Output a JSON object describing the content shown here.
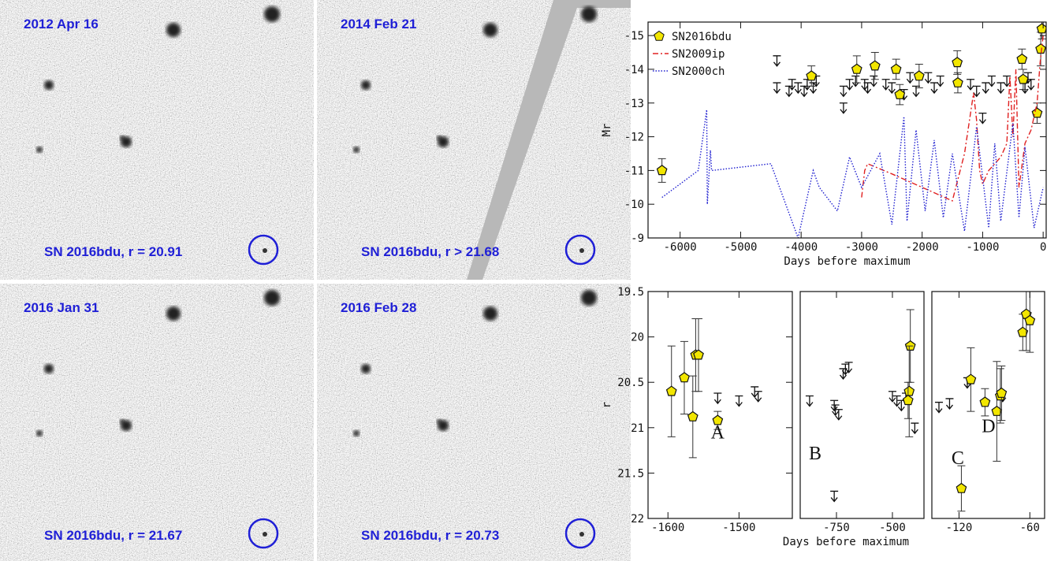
{
  "images": [
    {
      "date": "2012 Apr 16",
      "caption": "SN 2016bdu, r = 20.91"
    },
    {
      "date": "2014 Feb 21",
      "caption": "SN 2016bdu, r > 21.68"
    },
    {
      "date": "2016 Jan 31",
      "caption": "SN 2016bdu, r = 21.67"
    },
    {
      "date": "2016 Feb 28",
      "caption": "SN 2016bdu, r = 20.73"
    }
  ],
  "chart_data": [
    {
      "type": "scatter",
      "ylabel": "Mr",
      "xlabel": "Days before maximum",
      "legend": "upper left",
      "xlim": [
        -6530,
        50
      ],
      "ylim": [
        -9,
        -15.4
      ],
      "xticks": [
        -6000,
        -5000,
        -4000,
        -3000,
        -2000,
        -1000,
        0
      ],
      "yticks": [
        -15,
        -14,
        -13,
        -12,
        -11,
        -10,
        -9
      ],
      "series": [
        {
          "name": "SN2016bdu",
          "mark": "pentagon",
          "color": "#f2e600",
          "x": [
            -6300,
            -3830,
            -3080,
            -2780,
            -2430,
            -2370,
            -2050,
            -1420,
            -1410,
            -350,
            -330,
            -100,
            -40,
            -20
          ],
          "values": [
            -11.0,
            -13.8,
            -14.0,
            -14.1,
            -14.0,
            -13.25,
            -13.8,
            -14.2,
            -13.6,
            -14.3,
            -13.7,
            -12.7,
            -14.6,
            -15.2
          ],
          "errors": [
            0.35,
            0.3,
            0.4,
            0.4,
            0.3,
            0.3,
            0.35,
            0.35,
            0.3,
            0.3,
            0.3,
            0.3,
            0.5,
            0.3
          ]
        },
        {
          "name": "SN2009ip",
          "mark": "dashdot",
          "color": "#e02020",
          "x": [
            -3000,
            -2950,
            -2900,
            -2500,
            -2000,
            -1500,
            -1300,
            -1150,
            -1100,
            -1050,
            -1000,
            -900,
            -700,
            -600,
            -550,
            -500,
            -450,
            -400,
            -300,
            -200,
            -100,
            -50,
            0
          ],
          "values": [
            -10.2,
            -11.0,
            -11.2,
            -10.9,
            -10.5,
            -10.1,
            -11.5,
            -13.3,
            -12.5,
            -11.0,
            -10.6,
            -11.0,
            -11.4,
            -11.8,
            -13.8,
            -12.0,
            -14.0,
            -10.5,
            -11.8,
            -12.2,
            -13.0,
            -14.2,
            -15.0
          ]
        },
        {
          "name": "SN2000ch",
          "mark": "dotted",
          "color": "#2020d0",
          "x": [
            -6300,
            -5700,
            -5560,
            -5550,
            -5500,
            -5480,
            -4500,
            -4050,
            -3800,
            -3700,
            -3400,
            -3200,
            -3000,
            -2700,
            -2500,
            -2300,
            -2250,
            -2100,
            -1950,
            -1800,
            -1650,
            -1500,
            -1300,
            -1100,
            -900,
            -800,
            -700,
            -500,
            -400,
            -300,
            -150,
            0
          ],
          "values": [
            -10.2,
            -11.0,
            -12.8,
            -10.0,
            -11.6,
            -11.0,
            -11.2,
            -9.0,
            -11.0,
            -10.5,
            -9.8,
            -11.4,
            -10.5,
            -11.5,
            -9.4,
            -12.6,
            -9.5,
            -12.2,
            -9.8,
            -11.9,
            -9.6,
            -11.5,
            -9.2,
            -12.3,
            -9.3,
            -11.8,
            -9.5,
            -12.4,
            -9.6,
            -11.7,
            -9.3,
            -10.5
          ]
        }
      ],
      "limits": {
        "x": [
          -4400,
          -4400,
          -4200,
          -4150,
          -4050,
          -3950,
          -3900,
          -3800,
          -3750,
          -3300,
          -3300,
          -3200,
          -3100,
          -2950,
          -2900,
          -2800,
          -2600,
          -2500,
          -2300,
          -2200,
          -2100,
          -1900,
          -1800,
          -1700,
          -1200,
          -1100,
          -1000,
          -950,
          -850,
          -700,
          -600,
          -300,
          -250,
          -200
        ],
        "values": [
          -14.4,
          -13.6,
          -13.5,
          -13.7,
          -13.6,
          -13.5,
          -13.7,
          -13.6,
          -13.8,
          -13.5,
          -13.0,
          -13.7,
          -13.8,
          -13.7,
          -13.6,
          -13.8,
          -13.7,
          -13.6,
          -13.4,
          -13.9,
          -13.5,
          -13.9,
          -13.6,
          -13.8,
          -13.7,
          -13.5,
          -12.7,
          -13.6,
          -13.8,
          -13.6,
          -13.8,
          -13.6,
          -13.9,
          -13.7
        ]
      }
    },
    {
      "type": "scatter",
      "ylabel": "r",
      "xlabel": "Days before maximum",
      "xlim": [
        -1628,
        -1425
      ],
      "ylim": [
        22,
        19.5
      ],
      "xticks": [
        -1600,
        -1500
      ],
      "yticks": [
        19.5,
        20,
        20.5,
        21,
        21.5,
        22
      ],
      "series": [
        {
          "mark": "pentagon",
          "color": "#f2e600",
          "x": [
            -1595,
            -1577,
            -1565,
            -1561,
            -1557,
            -1530
          ],
          "values": [
            20.6,
            20.45,
            20.88,
            20.2,
            20.2,
            20.92
          ],
          "errors": [
            0.5,
            0.4,
            0.45,
            0.4,
            0.4,
            0.1
          ]
        }
      ],
      "limits": {
        "x": [
          -1530,
          -1500,
          -1478,
          -1473
        ],
        "values": [
          20.62,
          20.65,
          20.55,
          20.6
        ]
      },
      "annotations": [
        {
          "text": "A",
          "x": -1530,
          "y": 21.12
        }
      ]
    },
    {
      "type": "scatter",
      "xlim": [
        -912,
        -359
      ],
      "ylim": [
        22,
        19.5
      ],
      "xticks": [
        -750,
        -500
      ],
      "series": [
        {
          "mark": "pentagon",
          "color": "#f2e600",
          "x": [
            -420,
            -425,
            -430
          ],
          "values": [
            20.1,
            20.6,
            20.7
          ],
          "errors": [
            0.4,
            0.5,
            0.2
          ]
        }
      ],
      "limits": {
        "x": [
          -870,
          -760,
          -755,
          -740,
          -720,
          -710,
          -695,
          -760,
          -500,
          -480,
          -460,
          -440,
          -400
        ],
        "values": [
          20.65,
          20.7,
          20.75,
          20.8,
          20.35,
          20.3,
          20.28,
          21.7,
          20.6,
          20.65,
          20.7,
          20.62,
          20.95
        ]
      },
      "annotations": [
        {
          "text": "B",
          "x": -845,
          "y": 21.35
        }
      ]
    },
    {
      "type": "scatter",
      "xlim": [
        -143,
        -47.5
      ],
      "ylim": [
        22,
        19.5
      ],
      "xticks": [
        -120,
        -60
      ],
      "series": [
        {
          "mark": "pentagon",
          "color": "#f2e600",
          "x": [
            -118,
            -110,
            -98,
            -88,
            -85,
            -84,
            -66,
            -63,
            -60
          ],
          "values": [
            21.67,
            20.47,
            20.72,
            20.82,
            20.65,
            20.62,
            19.95,
            19.75,
            19.82
          ],
          "errors": [
            0.25,
            0.35,
            0.15,
            0.55,
            0.3,
            0.3,
            0.2,
            0.4,
            0.35
          ]
        }
      ],
      "limits": {
        "x": [
          -137,
          -128,
          -113,
          -83
        ],
        "values": [
          20.72,
          20.68,
          20.45,
          20.6
        ]
      },
      "annotations": [
        {
          "text": "C",
          "x": -121,
          "y": 21.4
        },
        {
          "text": "D",
          "x": -95,
          "y": 21.05
        }
      ]
    }
  ]
}
